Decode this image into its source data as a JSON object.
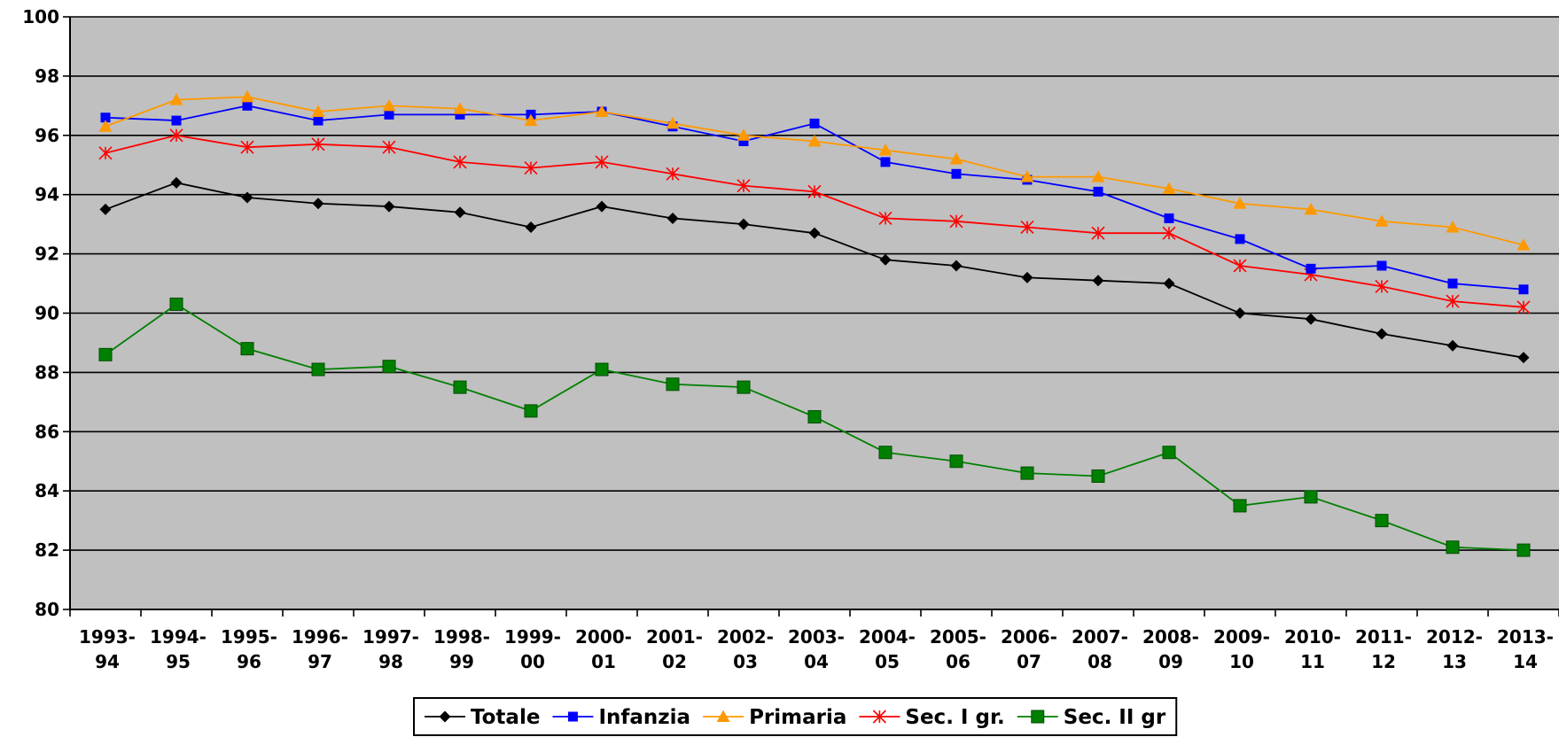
{
  "chart_data": {
    "type": "line",
    "title": "",
    "xlabel": "",
    "ylabel": "",
    "ylim": [
      80,
      100
    ],
    "ytick_step": 2,
    "grid": true,
    "legend_position": "bottom",
    "plot_background": "#C0C0C0",
    "categories": [
      [
        "1993-",
        "94"
      ],
      [
        "1994-",
        "95"
      ],
      [
        "1995-",
        "96"
      ],
      [
        "1996-",
        "97"
      ],
      [
        "1997-",
        "98"
      ],
      [
        "1998-",
        "99"
      ],
      [
        "1999-",
        "00"
      ],
      [
        "2000-",
        "01"
      ],
      [
        "2001-",
        "02"
      ],
      [
        "2002-",
        "03"
      ],
      [
        "2003-",
        "04"
      ],
      [
        "2004-",
        "05"
      ],
      [
        "2005-",
        "06"
      ],
      [
        "2006-",
        "07"
      ],
      [
        "2007-",
        "08"
      ],
      [
        "2008-",
        "09"
      ],
      [
        "2009-",
        "10"
      ],
      [
        "2010-",
        "11"
      ],
      [
        "2011-",
        "12"
      ],
      [
        "2012-",
        "13"
      ],
      [
        "2013-",
        "14"
      ]
    ],
    "series": [
      {
        "name": "Totale",
        "color": "#000000",
        "marker": "diamond",
        "values": [
          93.5,
          94.4,
          93.9,
          93.7,
          93.6,
          93.4,
          92.9,
          93.6,
          93.2,
          93.0,
          92.7,
          91.8,
          91.6,
          91.2,
          91.1,
          91.0,
          90.0,
          89.8,
          89.3,
          88.9,
          88.5
        ]
      },
      {
        "name": "Infanzia",
        "color": "#0000FF",
        "marker": "square",
        "values": [
          96.6,
          96.5,
          97.0,
          96.5,
          96.7,
          96.7,
          96.7,
          96.8,
          96.3,
          95.8,
          96.4,
          95.1,
          94.7,
          94.5,
          94.1,
          93.2,
          92.5,
          91.5,
          91.6,
          91.0,
          90.8
        ]
      },
      {
        "name": "Primaria",
        "color": "#FF9900",
        "marker": "triangle",
        "values": [
          96.3,
          97.2,
          97.3,
          96.8,
          97.0,
          96.9,
          96.5,
          96.8,
          96.4,
          96.0,
          95.8,
          95.5,
          95.2,
          94.6,
          94.6,
          94.2,
          93.7,
          93.5,
          93.1,
          92.9,
          92.3
        ]
      },
      {
        "name": "Sec. I gr.",
        "color": "#FF0000",
        "marker": "star",
        "values": [
          95.4,
          96.0,
          95.6,
          95.7,
          95.6,
          95.1,
          94.9,
          95.1,
          94.7,
          94.3,
          94.1,
          93.2,
          93.1,
          92.9,
          92.7,
          92.7,
          91.6,
          91.3,
          90.9,
          90.4,
          90.2
        ]
      },
      {
        "name": "Sec. II gr",
        "color": "#008000",
        "marker": "bigsquare",
        "values": [
          88.6,
          90.3,
          88.8,
          88.1,
          88.2,
          87.5,
          86.7,
          88.1,
          87.6,
          87.5,
          86.5,
          85.3,
          85.0,
          84.6,
          84.5,
          85.3,
          83.5,
          83.8,
          83.0,
          82.1,
          82.0
        ]
      }
    ]
  }
}
